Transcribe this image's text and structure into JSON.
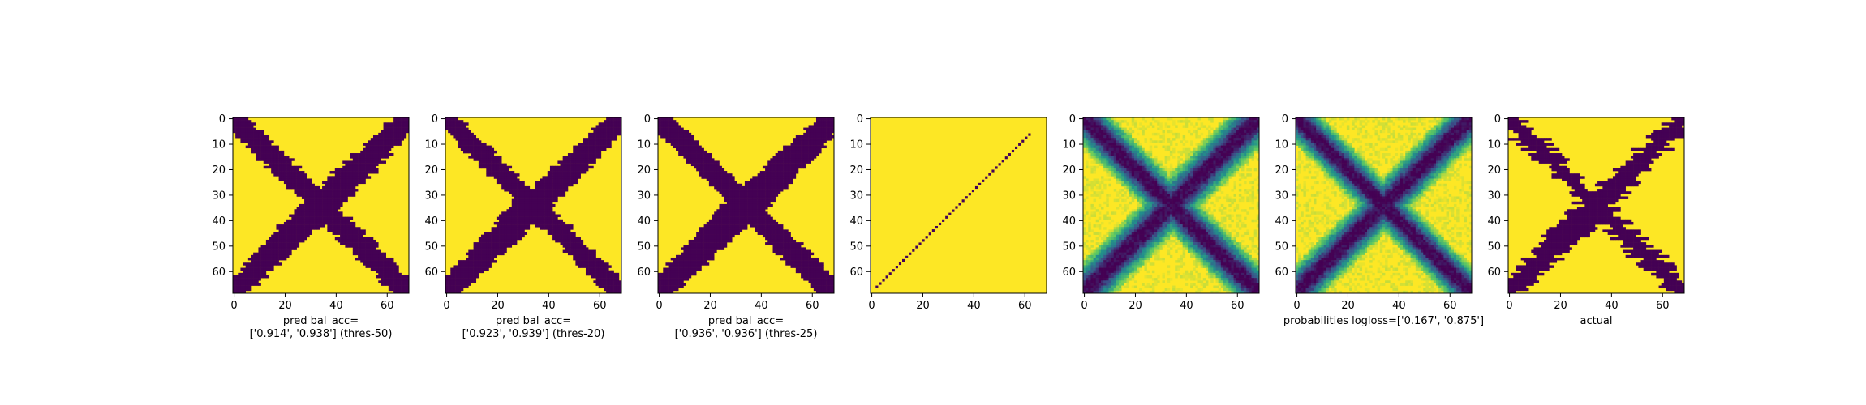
{
  "colors": {
    "low": "#440154",
    "high": "#fde725",
    "axis": "#000000"
  },
  "panels_common": {
    "xlim": [
      0,
      69
    ],
    "ylim": [
      69,
      0
    ],
    "xticks": [
      0,
      20,
      40,
      60
    ],
    "yticks": [
      0,
      10,
      20,
      30,
      40,
      50,
      60
    ]
  },
  "chart_data": [
    {
      "type": "heatmap",
      "title": "",
      "xlabel": "pred bal_acc=\n['0.914', '0.938'] (thres-50)",
      "mode": "binary",
      "width": 4.2,
      "jitter": 1.2,
      "seed": 11,
      "xlim": [
        0,
        69
      ],
      "ylim": [
        69,
        0
      ]
    },
    {
      "type": "heatmap",
      "title": "",
      "xlabel": "pred bal_acc=\n['0.923', '0.939'] (thres-20)",
      "mode": "binary",
      "width": 4.0,
      "jitter": 1.0,
      "seed": 23,
      "xlim": [
        0,
        69
      ],
      "ylim": [
        69,
        0
      ]
    },
    {
      "type": "heatmap",
      "title": "",
      "xlabel": "pred bal_acc=\n['0.936', '0.936'] (thres-25)",
      "mode": "binary",
      "width": 4.4,
      "jitter": 0.8,
      "seed": 37,
      "xlim": [
        0,
        69
      ],
      "ylim": [
        69,
        0
      ]
    },
    {
      "type": "heatmap",
      "title": "",
      "xlabel": "",
      "mode": "line",
      "xlim": [
        0,
        69
      ],
      "ylim": [
        69,
        0
      ]
    },
    {
      "type": "heatmap",
      "title": "",
      "xlabel": "",
      "mode": "prob",
      "width": 4.6,
      "seed": 41,
      "xlim": [
        0,
        69
      ],
      "ylim": [
        69,
        0
      ]
    },
    {
      "type": "heatmap",
      "title": "",
      "xlabel": "probabilities logloss=['0.167', '0.875']",
      "mode": "prob",
      "width": 4.2,
      "seed": 53,
      "xlim": [
        0,
        69
      ],
      "ylim": [
        69,
        0
      ]
    },
    {
      "type": "heatmap",
      "title": "",
      "xlabel": "actual",
      "mode": "binary",
      "width": 3.6,
      "jitter": 2.2,
      "seed": 67,
      "xlim": [
        0,
        69
      ],
      "ylim": [
        69,
        0
      ]
    }
  ]
}
